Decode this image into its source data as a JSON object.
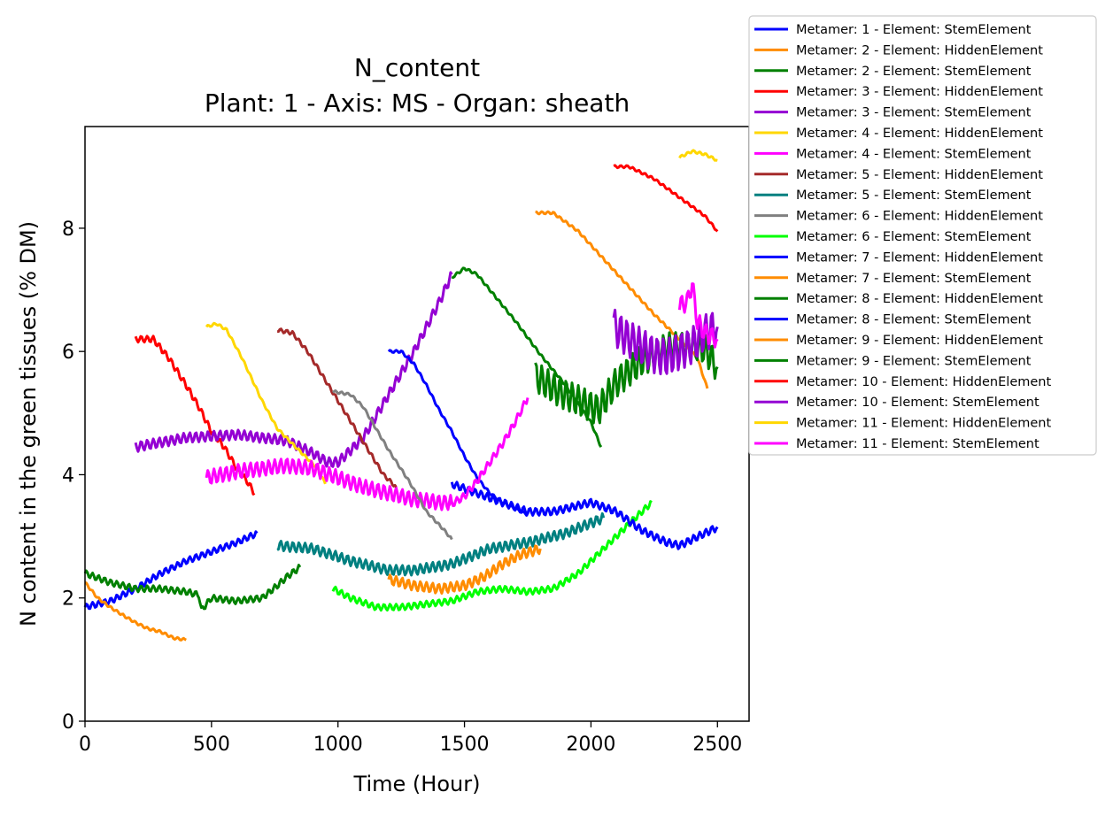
{
  "chart_data": {
    "type": "line",
    "title": "N_content",
    "subtitle": "Plant: 1 - Axis: MS - Organ: sheath",
    "xlabel": "Time (Hour)",
    "ylabel": "N content in the green tissues (% DM)",
    "xlim": [
      0,
      2625
    ],
    "ylim": [
      0,
      9.65
    ],
    "xticks": [
      0,
      500,
      1000,
      1500,
      2000,
      2500
    ],
    "yticks": [
      0,
      2,
      4,
      6,
      8
    ],
    "grid": false,
    "legend_position": "outside-top-right",
    "series": [
      {
        "name": "Metamer: 1 - Element: StemElement",
        "color": "#0000ff",
        "osc": 0.05,
        "points": [
          [
            0,
            1.85
          ],
          [
            100,
            1.95
          ],
          [
            200,
            2.15
          ],
          [
            300,
            2.4
          ],
          [
            400,
            2.6
          ],
          [
            500,
            2.75
          ],
          [
            600,
            2.9
          ],
          [
            680,
            3.05
          ]
        ]
      },
      {
        "name": "Metamer: 2 - Element: HiddenElement",
        "color": "#ff8c00",
        "osc": 0.02,
        "points": [
          [
            0,
            2.25
          ],
          [
            50,
            2.0
          ],
          [
            100,
            1.85
          ],
          [
            150,
            1.72
          ],
          [
            200,
            1.6
          ],
          [
            250,
            1.5
          ],
          [
            300,
            1.45
          ],
          [
            350,
            1.35
          ],
          [
            400,
            1.32
          ]
        ]
      },
      {
        "name": "Metamer: 2 - Element: StemElement",
        "color": "#008000",
        "osc": 0.05,
        "points": [
          [
            0,
            2.4
          ],
          [
            100,
            2.25
          ],
          [
            200,
            2.15
          ],
          [
            300,
            2.15
          ],
          [
            400,
            2.1
          ],
          [
            450,
            2.05
          ],
          [
            460,
            1.8
          ],
          [
            500,
            2.0
          ],
          [
            600,
            1.95
          ],
          [
            700,
            2.0
          ],
          [
            760,
            2.2
          ],
          [
            800,
            2.35
          ],
          [
            850,
            2.5
          ]
        ]
      },
      {
        "name": "Metamer: 3 - Element: HiddenElement",
        "color": "#ff0000",
        "osc": 0.05,
        "points": [
          [
            200,
            6.2
          ],
          [
            270,
            6.2
          ],
          [
            330,
            5.9
          ],
          [
            400,
            5.45
          ],
          [
            450,
            5.1
          ],
          [
            500,
            4.7
          ],
          [
            550,
            4.45
          ],
          [
            600,
            4.1
          ],
          [
            640,
            3.9
          ],
          [
            670,
            3.7
          ]
        ]
      },
      {
        "name": "Metamer: 3 - Element: StemElement",
        "color": "#9400d3",
        "osc": 0.08,
        "points": [
          [
            200,
            4.45
          ],
          [
            400,
            4.6
          ],
          [
            600,
            4.65
          ],
          [
            800,
            4.55
          ],
          [
            900,
            4.35
          ],
          [
            960,
            4.2
          ],
          [
            1000,
            4.2
          ],
          [
            1100,
            4.6
          ],
          [
            1200,
            5.3
          ],
          [
            1300,
            6.0
          ],
          [
            1400,
            6.8
          ],
          [
            1450,
            7.25
          ]
        ]
      },
      {
        "name": "Metamer: 4 - Element: HiddenElement",
        "color": "#ffd700",
        "osc": 0.02,
        "points": [
          [
            480,
            6.4
          ],
          [
            520,
            6.45
          ],
          [
            560,
            6.35
          ],
          [
            620,
            5.9
          ],
          [
            700,
            5.2
          ],
          [
            760,
            4.75
          ],
          [
            820,
            4.5
          ],
          [
            870,
            4.3
          ],
          [
            920,
            4.1
          ],
          [
            950,
            3.85
          ]
        ]
      },
      {
        "name": "Metamer: 4 - Element: StemElement",
        "color": "#ff00ff",
        "osc": 0.12,
        "points": [
          [
            480,
            3.95
          ],
          [
            600,
            4.05
          ],
          [
            700,
            4.1
          ],
          [
            800,
            4.15
          ],
          [
            900,
            4.1
          ],
          [
            1000,
            3.95
          ],
          [
            1100,
            3.8
          ],
          [
            1200,
            3.7
          ],
          [
            1300,
            3.6
          ],
          [
            1400,
            3.55
          ],
          [
            1450,
            3.55
          ]
        ]
      },
      {
        "name": "Metamer: 5 - Element: HiddenElement",
        "color": "#a52a2a",
        "osc": 0.03,
        "points": [
          [
            760,
            6.35
          ],
          [
            820,
            6.3
          ],
          [
            880,
            6.0
          ],
          [
            940,
            5.6
          ],
          [
            1000,
            5.2
          ],
          [
            1060,
            4.8
          ],
          [
            1120,
            4.4
          ],
          [
            1180,
            4.0
          ],
          [
            1230,
            3.8
          ]
        ]
      },
      {
        "name": "Metamer: 5 - Element: StemElement",
        "color": "#008080",
        "osc": 0.08,
        "points": [
          [
            760,
            2.85
          ],
          [
            900,
            2.8
          ],
          [
            1050,
            2.6
          ],
          [
            1200,
            2.45
          ],
          [
            1300,
            2.45
          ],
          [
            1450,
            2.55
          ],
          [
            1600,
            2.8
          ],
          [
            1750,
            2.9
          ],
          [
            1900,
            3.05
          ],
          [
            2050,
            3.3
          ]
        ]
      },
      {
        "name": "Metamer: 6 - Element: HiddenElement",
        "color": "#808080",
        "osc": 0.02,
        "points": [
          [
            980,
            5.35
          ],
          [
            1050,
            5.3
          ],
          [
            1100,
            5.1
          ],
          [
            1150,
            4.75
          ],
          [
            1200,
            4.4
          ],
          [
            1280,
            3.9
          ],
          [
            1350,
            3.4
          ],
          [
            1420,
            3.1
          ],
          [
            1450,
            2.95
          ]
        ]
      },
      {
        "name": "Metamer: 6 - Element: StemElement",
        "color": "#00ff00",
        "osc": 0.05,
        "points": [
          [
            980,
            2.15
          ],
          [
            1050,
            2.0
          ],
          [
            1150,
            1.85
          ],
          [
            1250,
            1.85
          ],
          [
            1350,
            1.9
          ],
          [
            1450,
            1.95
          ],
          [
            1550,
            2.1
          ],
          [
            1650,
            2.15
          ],
          [
            1750,
            2.1
          ],
          [
            1850,
            2.15
          ],
          [
            1950,
            2.4
          ],
          [
            2050,
            2.8
          ],
          [
            2150,
            3.2
          ],
          [
            2240,
            3.55
          ]
        ]
      },
      {
        "name": "Metamer: 7 - Element: HiddenElement",
        "color": "#0000ff",
        "osc": 0.06,
        "points": [
          [
            1450,
            3.85
          ],
          [
            1550,
            3.7
          ],
          [
            1650,
            3.55
          ],
          [
            1750,
            3.4
          ],
          [
            1850,
            3.4
          ],
          [
            1950,
            3.5
          ],
          [
            2000,
            3.55
          ],
          [
            2100,
            3.4
          ],
          [
            2200,
            3.1
          ],
          [
            2300,
            2.9
          ],
          [
            2350,
            2.85
          ],
          [
            2400,
            2.95
          ],
          [
            2500,
            3.15
          ]
        ]
      },
      {
        "name": "Metamer: 7 - Element: StemElement",
        "color": "#ff8c00",
        "osc": 0.08,
        "points": [
          [
            1200,
            2.3
          ],
          [
            1300,
            2.2
          ],
          [
            1400,
            2.15
          ],
          [
            1500,
            2.2
          ],
          [
            1580,
            2.35
          ],
          [
            1650,
            2.55
          ],
          [
            1720,
            2.7
          ],
          [
            1800,
            2.8
          ]
        ]
      },
      {
        "name": "Metamer: 8 - Element: HiddenElement",
        "color": "#008000",
        "osc": 0.02,
        "points": [
          [
            1450,
            7.2
          ],
          [
            1500,
            7.35
          ],
          [
            1550,
            7.25
          ],
          [
            1600,
            7.0
          ],
          [
            1700,
            6.5
          ],
          [
            1800,
            5.95
          ],
          [
            1900,
            5.45
          ],
          [
            1950,
            5.15
          ],
          [
            2000,
            4.85
          ],
          [
            2040,
            4.45
          ]
        ]
      },
      {
        "name": "Metamer: 8 - Element: StemElement",
        "color": "#0000ff",
        "osc": 0.02,
        "points": [
          [
            1200,
            6.0
          ],
          [
            1250,
            6.0
          ],
          [
            1300,
            5.8
          ],
          [
            1350,
            5.45
          ],
          [
            1400,
            5.05
          ],
          [
            1450,
            4.7
          ],
          [
            1500,
            4.3
          ],
          [
            1550,
            3.95
          ],
          [
            1600,
            3.7
          ],
          [
            1650,
            3.55
          ],
          [
            1700,
            3.45
          ],
          [
            1750,
            3.35
          ]
        ]
      },
      {
        "name": "Metamer: 9 - Element: HiddenElement",
        "color": "#ff8c00",
        "osc": 0.02,
        "points": [
          [
            1780,
            8.25
          ],
          [
            1850,
            8.25
          ],
          [
            1950,
            7.95
          ],
          [
            2050,
            7.5
          ],
          [
            2150,
            7.05
          ],
          [
            2250,
            6.6
          ],
          [
            2350,
            6.2
          ],
          [
            2420,
            5.9
          ],
          [
            2460,
            5.4
          ]
        ]
      },
      {
        "name": "Metamer: 9 - Element: StemElement",
        "color": "#008000",
        "osc": 0.25,
        "points": [
          [
            1780,
            5.6
          ],
          [
            1850,
            5.4
          ],
          [
            1950,
            5.2
          ],
          [
            2030,
            5.05
          ],
          [
            2100,
            5.5
          ],
          [
            2200,
            5.85
          ],
          [
            2300,
            6.05
          ],
          [
            2400,
            6.1
          ],
          [
            2450,
            6.05
          ],
          [
            2500,
            5.75
          ]
        ]
      },
      {
        "name": "Metamer: 10 - Element: HiddenElement",
        "color": "#ff0000",
        "osc": 0.02,
        "points": [
          [
            2090,
            9.0
          ],
          [
            2150,
            9.0
          ],
          [
            2250,
            8.8
          ],
          [
            2350,
            8.5
          ],
          [
            2450,
            8.2
          ],
          [
            2500,
            7.95
          ]
        ]
      },
      {
        "name": "Metamer: 10 - Element: StemElement",
        "color": "#9400d3",
        "osc": 0.3,
        "points": [
          [
            2090,
            6.4
          ],
          [
            2150,
            6.2
          ],
          [
            2250,
            5.95
          ],
          [
            2300,
            5.9
          ],
          [
            2400,
            6.1
          ],
          [
            2450,
            6.3
          ],
          [
            2500,
            6.4
          ]
        ]
      },
      {
        "name": "Metamer: 11 - Element: HiddenElement",
        "color": "#ffd700",
        "osc": 0.02,
        "points": [
          [
            2350,
            9.15
          ],
          [
            2400,
            9.25
          ],
          [
            2450,
            9.2
          ],
          [
            2500,
            9.1
          ]
        ]
      },
      {
        "name": "Metamer: 11 - Element: StemElement",
        "color": "#ff00ff",
        "osc": 0.06,
        "points": [
          [
            1440,
            3.5
          ],
          [
            1500,
            3.65
          ],
          [
            1550,
            3.9
          ],
          [
            1600,
            4.2
          ],
          [
            1650,
            4.5
          ],
          [
            1700,
            4.85
          ],
          [
            1750,
            5.25
          ]
        ]
      },
      {
        "name": "",
        "color": "#ff00ff",
        "osc": 0.15,
        "points": [
          [
            2350,
            6.75
          ],
          [
            2380,
            6.8
          ],
          [
            2400,
            7.1
          ],
          [
            2420,
            6.5
          ],
          [
            2450,
            6.3
          ],
          [
            2500,
            6.2
          ]
        ]
      }
    ]
  }
}
